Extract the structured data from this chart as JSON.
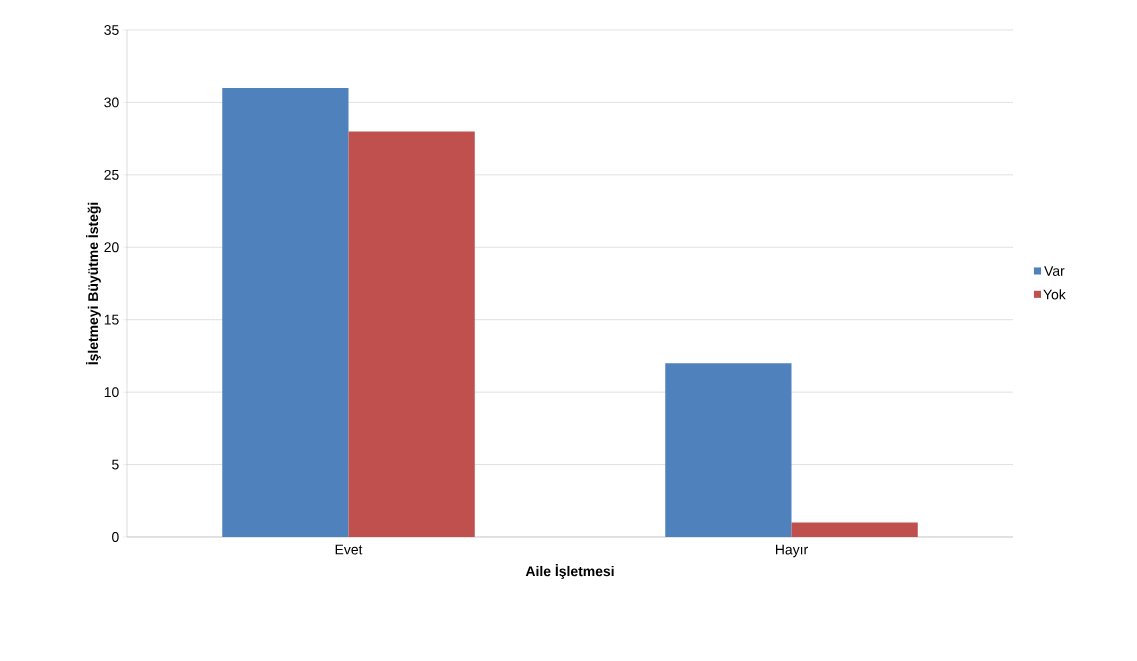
{
  "chart_data": {
    "type": "bar",
    "xlabel": "Aile İşletmesi",
    "ylabel": "İşletmeyi Büyütme İsteği",
    "categories": [
      "Evet",
      "Hayır"
    ],
    "series": [
      {
        "name": "Var",
        "color": "#4f81bd",
        "values": [
          31,
          12
        ]
      },
      {
        "name": "Yok",
        "color": "#c0504d",
        "values": [
          28,
          1
        ]
      }
    ],
    "ylim": [
      0,
      35
    ],
    "yticks": [
      0,
      5,
      10,
      15,
      20,
      25,
      30,
      35
    ],
    "grid": "y",
    "legend": "right"
  }
}
